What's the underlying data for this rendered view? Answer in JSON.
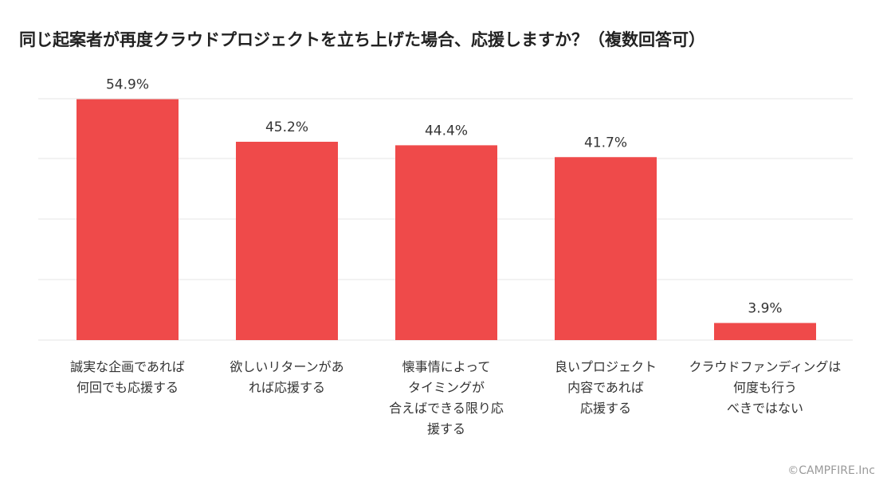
{
  "chart_data": {
    "type": "bar",
    "title": "同じ起案者が再度クラウドプロジェクトを立ち上げた場合、応援しますか？（複数回答可）",
    "categories": [
      [
        "誠実な企画であれば",
        "何回でも応援する"
      ],
      [
        "欲しいリターンがあ",
        "れば応援する"
      ],
      [
        "懐事情によって",
        "タイミングが",
        "合えばできる限り応",
        "援する"
      ],
      [
        "良いプロジェクト",
        "内容であれば",
        "応援する"
      ],
      [
        "クラウドファンディングは",
        "何度も行う",
        "べきではない"
      ]
    ],
    "values": [
      54.9,
      45.2,
      44.4,
      41.7,
      3.9
    ],
    "data_labels": [
      "54.9%",
      "45.2%",
      "44.4%",
      "41.7%",
      "3.9%"
    ],
    "unit": "%",
    "ylim": [
      0,
      60
    ],
    "grid": true,
    "legend": "none",
    "colors": {
      "bar": "#ef4a4a",
      "grid": "#e6e6e6",
      "label": "#333333"
    }
  },
  "footer": {
    "copyright": "©CAMPFIRE.Inc"
  }
}
